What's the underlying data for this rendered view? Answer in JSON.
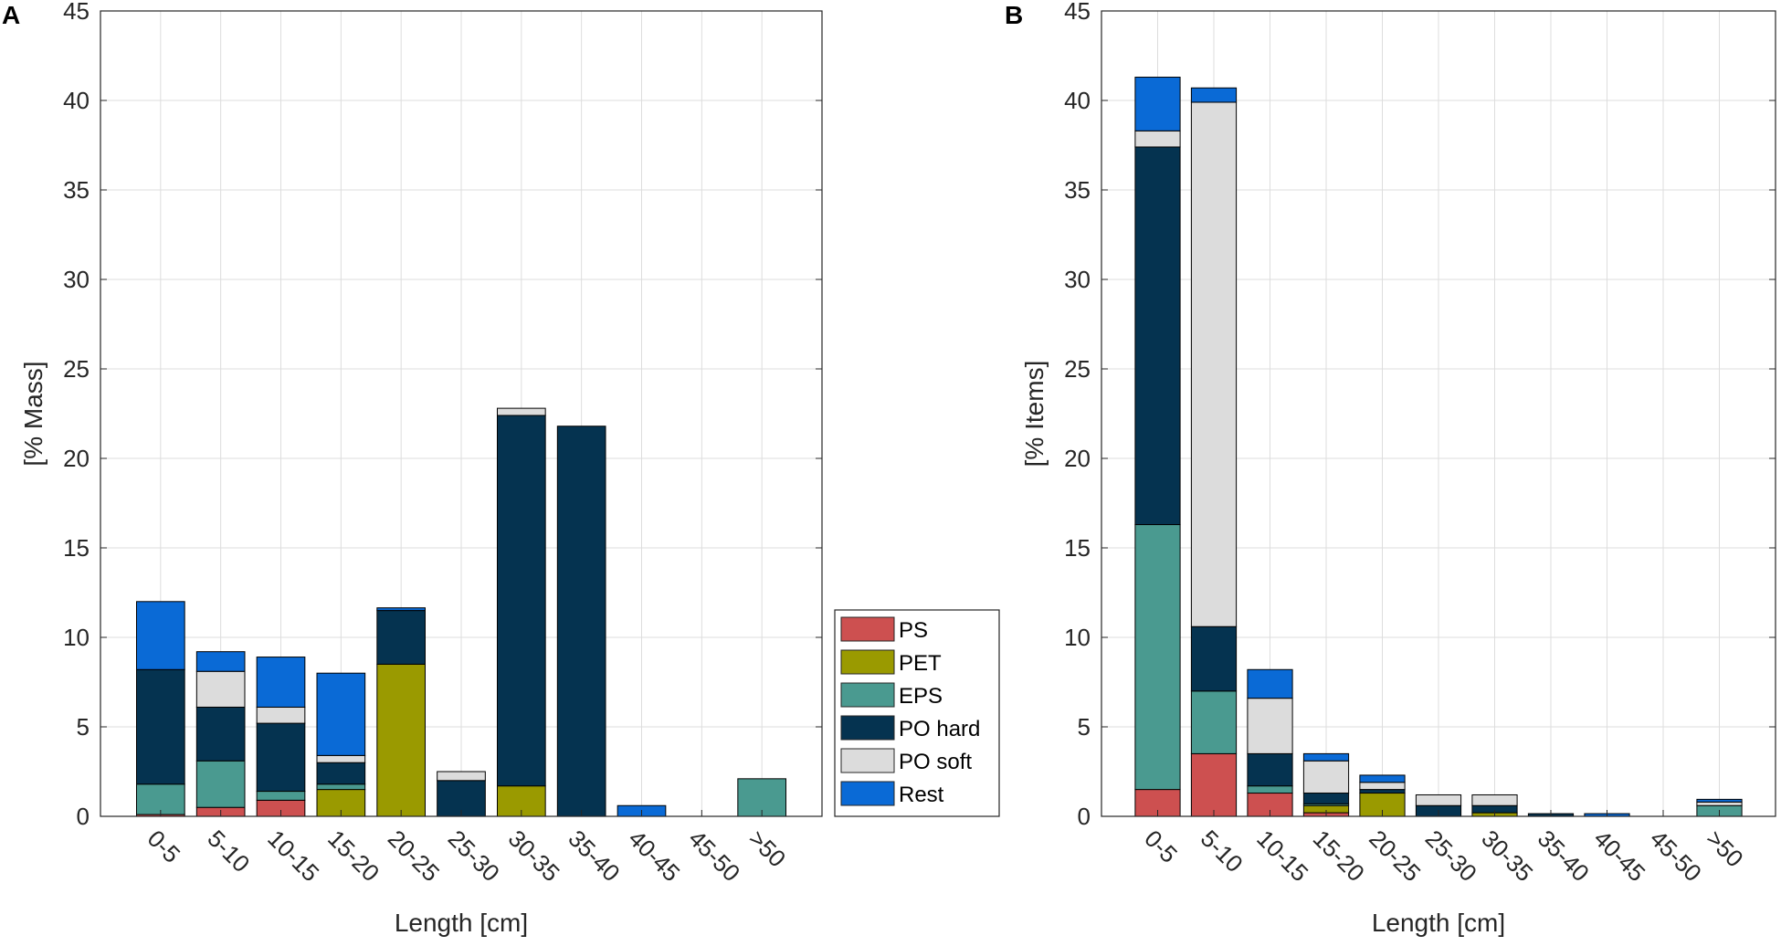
{
  "series_names": [
    "PS",
    "PET",
    "EPS",
    "PO hard",
    "PO soft",
    "Rest"
  ],
  "colors": {
    "PS": "#cd5050",
    "PET": "#9a9a00",
    "EPS": "#4a9a90",
    "PO hard": "#053350",
    "PO soft": "#dcdcdc",
    "Rest": "#0a6ad6"
  },
  "legend": {
    "items": [
      "PS",
      "PET",
      "EPS",
      "PO hard",
      "PO soft",
      "Rest"
    ]
  },
  "chart_data": [
    {
      "panel": "A",
      "type": "bar",
      "stacked": true,
      "title": "",
      "xlabel": "Length [cm]",
      "ylabel": "[% Mass]",
      "ylim": [
        0,
        45
      ],
      "yticks": [
        0,
        5,
        10,
        15,
        20,
        25,
        30,
        35,
        40,
        45
      ],
      "grid": true,
      "categories": [
        "0-5",
        "5-10",
        "10-15",
        "15-20",
        "20-25",
        "25-30",
        "30-35",
        "35-40",
        "40-45",
        "45-50",
        ">50"
      ],
      "series": [
        {
          "name": "PS",
          "values": [
            0.1,
            0.5,
            0.9,
            0.0,
            0.0,
            0.0,
            0.0,
            0.0,
            0.0,
            0.0,
            0.0
          ]
        },
        {
          "name": "PET",
          "values": [
            0.0,
            0.0,
            0.0,
            1.5,
            8.5,
            0.0,
            1.7,
            0.0,
            0.0,
            0.0,
            0.0
          ]
        },
        {
          "name": "EPS",
          "values": [
            1.7,
            2.6,
            0.5,
            0.3,
            0.0,
            0.0,
            0.0,
            0.0,
            0.0,
            0.0,
            2.1
          ]
        },
        {
          "name": "PO hard",
          "values": [
            6.4,
            3.0,
            3.8,
            1.2,
            3.0,
            2.0,
            20.7,
            21.8,
            0.0,
            0.0,
            0.0
          ]
        },
        {
          "name": "PO soft",
          "values": [
            0.0,
            2.0,
            0.9,
            0.4,
            0.0,
            0.5,
            0.4,
            0.0,
            0.0,
            0.0,
            0.0
          ]
        },
        {
          "name": "Rest",
          "values": [
            3.8,
            1.1,
            2.8,
            4.6,
            0.15,
            0.0,
            0.0,
            0.0,
            0.6,
            0.0,
            0.0
          ]
        }
      ]
    },
    {
      "panel": "B",
      "type": "bar",
      "stacked": true,
      "title": "",
      "xlabel": "Length [cm]",
      "ylabel": "[% Items]",
      "ylim": [
        0,
        45
      ],
      "yticks": [
        0,
        5,
        10,
        15,
        20,
        25,
        30,
        35,
        40,
        45
      ],
      "grid": true,
      "categories": [
        "0-5",
        "5-10",
        "10-15",
        "15-20",
        "20-25",
        "25-30",
        "30-35",
        "35-40",
        "40-45",
        "45-50",
        ">50"
      ],
      "series": [
        {
          "name": "PS",
          "values": [
            1.5,
            3.5,
            1.3,
            0.2,
            0.0,
            0.0,
            0.0,
            0.0,
            0.0,
            0.0,
            0.0
          ]
        },
        {
          "name": "PET",
          "values": [
            0.0,
            0.0,
            0.0,
            0.4,
            1.3,
            0.0,
            0.2,
            0.0,
            0.0,
            0.0,
            0.0
          ]
        },
        {
          "name": "EPS",
          "values": [
            14.8,
            3.5,
            0.4,
            0.1,
            0.0,
            0.0,
            0.0,
            0.0,
            0.0,
            0.0,
            0.6
          ]
        },
        {
          "name": "PO hard",
          "values": [
            21.1,
            3.6,
            1.8,
            0.6,
            0.2,
            0.6,
            0.4,
            0.15,
            0.0,
            0.0,
            0.0
          ]
        },
        {
          "name": "PO soft",
          "values": [
            0.9,
            29.3,
            3.1,
            1.8,
            0.4,
            0.6,
            0.6,
            0.0,
            0.0,
            0.0,
            0.2
          ]
        },
        {
          "name": "Rest",
          "values": [
            3.0,
            0.8,
            1.6,
            0.4,
            0.4,
            0.0,
            0.0,
            0.0,
            0.15,
            0.0,
            0.15
          ]
        }
      ]
    }
  ]
}
